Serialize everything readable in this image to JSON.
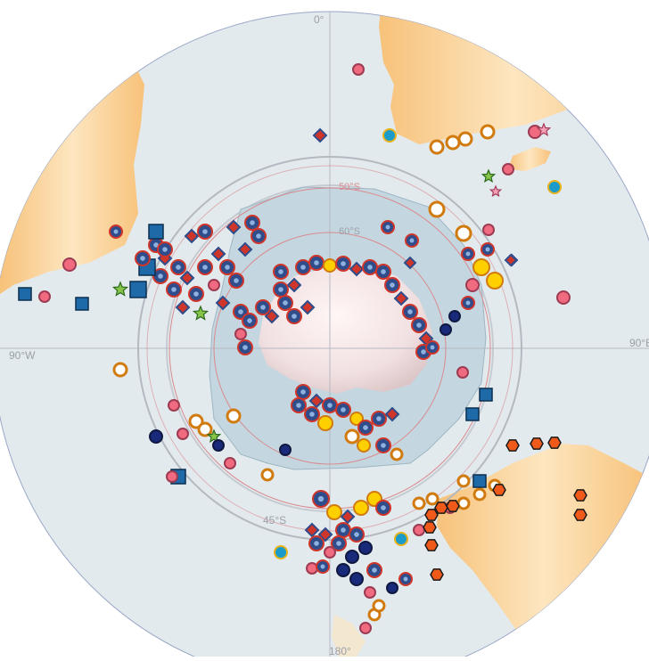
{
  "map": {
    "colors": {
      "ocean": "#e3eaee",
      "land": "#f8c57e",
      "land_light": "#fde5bd",
      "shelf": "#c4d7e0",
      "ice_cap": "#f5e5e6",
      "graticule": "#b4b9c1",
      "lat_circle": "#d98a8e"
    },
    "labels": {
      "lon_top": "0°",
      "lon_bottom": "180°",
      "lon_left": "90°W",
      "lon_right": "90°E",
      "lat_50": "50°S",
      "lat_60": "60°S",
      "lat_45": "45°S"
    },
    "symbols": [
      {
        "type": "circle-dot",
        "fill": "#2f4d8b",
        "stroke": "#d0352a",
        "note": "most common site marker"
      },
      {
        "type": "diamond",
        "fill": "#d0352a",
        "stroke": "#2f4d8b"
      },
      {
        "type": "ring",
        "fill": "#ffffff",
        "stroke": "#d17b0f"
      },
      {
        "type": "circle",
        "fill": "#ffd000",
        "stroke": "#d17b0f"
      },
      {
        "type": "circle",
        "fill": "#f06a80",
        "stroke": "#9c3b52"
      },
      {
        "type": "circle",
        "fill": "#1a9bc9",
        "stroke": "#e7b21a"
      },
      {
        "type": "square",
        "fill": "#1e6aa8",
        "stroke": "#0b2e4f"
      },
      {
        "type": "hexagon",
        "fill": "#ef5a1b",
        "stroke": "#1a1a1a"
      },
      {
        "type": "star",
        "fill": "#f7a0b5",
        "stroke": "#a23c5c"
      },
      {
        "type": "star",
        "fill": "#86c44a",
        "stroke": "#2b6a1c"
      },
      {
        "type": "circle",
        "fill": "#1a2a7a",
        "stroke": "#0f1840"
      }
    ]
  }
}
